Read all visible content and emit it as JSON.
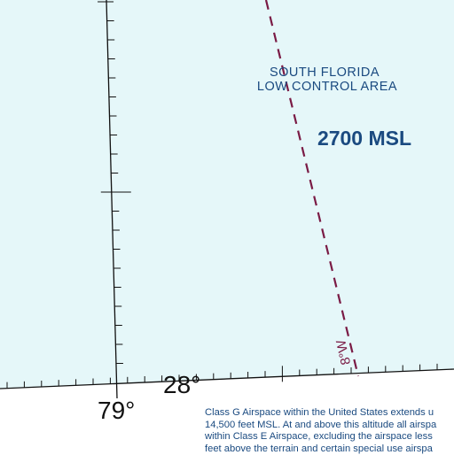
{
  "map": {
    "colors": {
      "water": "#e5f7f9",
      "land": "#ffffff",
      "lines": "#111111",
      "isogonic": "#7a1b45",
      "labels": "#1a4a80"
    },
    "area_name": [
      "SOUTH FLORIDA",
      "LOW CONTROL AREA"
    ],
    "altitude": "2700 MSL",
    "isogonic_label": "8°W",
    "latitude_label": "28°",
    "longitude_label": "79°",
    "note_lines": [
      "Class G Airspace within the United States extends u",
      "14,500 feet MSL. At and above this altitude all airspa",
      "within Class E Airspace, excluding the airspace less",
      "feet above the terrain and certain special use airspa"
    ]
  }
}
